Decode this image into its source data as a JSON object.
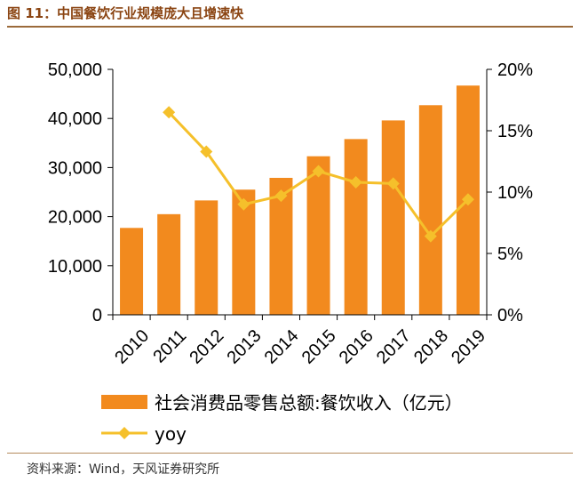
{
  "figure": {
    "title": "图 11：中国餐饮行业规模庞大且增速快",
    "source": "资料来源：Wind，天风证券研究所"
  },
  "colors": {
    "bar": "#f28a1e",
    "line": "#f5c02b",
    "axis": "#000000"
  },
  "chart_data": {
    "type": "bar",
    "categories": [
      "2010",
      "2011",
      "2012",
      "2013",
      "2014",
      "2015",
      "2016",
      "2017",
      "2018",
      "2019"
    ],
    "series": [
      {
        "name": "社会消费品零售总额:餐饮收入（亿元）",
        "type": "bar",
        "axis": "left",
        "values": [
          17700,
          20500,
          23300,
          25500,
          27900,
          32300,
          35800,
          39600,
          42700,
          46700
        ]
      },
      {
        "name": "yoy",
        "type": "line",
        "axis": "right",
        "values": [
          null,
          16.5,
          13.3,
          9.0,
          9.7,
          11.7,
          10.8,
          10.7,
          6.4,
          9.4
        ]
      }
    ],
    "left_axis": {
      "range": [
        0,
        50000
      ],
      "ticks": [
        0,
        10000,
        20000,
        30000,
        40000,
        50000
      ],
      "tick_labels": [
        "0",
        "10,000",
        "20,000",
        "30,000",
        "40,000",
        "50,000"
      ]
    },
    "right_axis": {
      "range": [
        0,
        20
      ],
      "ticks": [
        0,
        5,
        10,
        15,
        20
      ],
      "tick_labels": [
        "0%",
        "5%",
        "10%",
        "15%",
        "20%"
      ]
    },
    "legend": {
      "position": "bottom"
    }
  }
}
